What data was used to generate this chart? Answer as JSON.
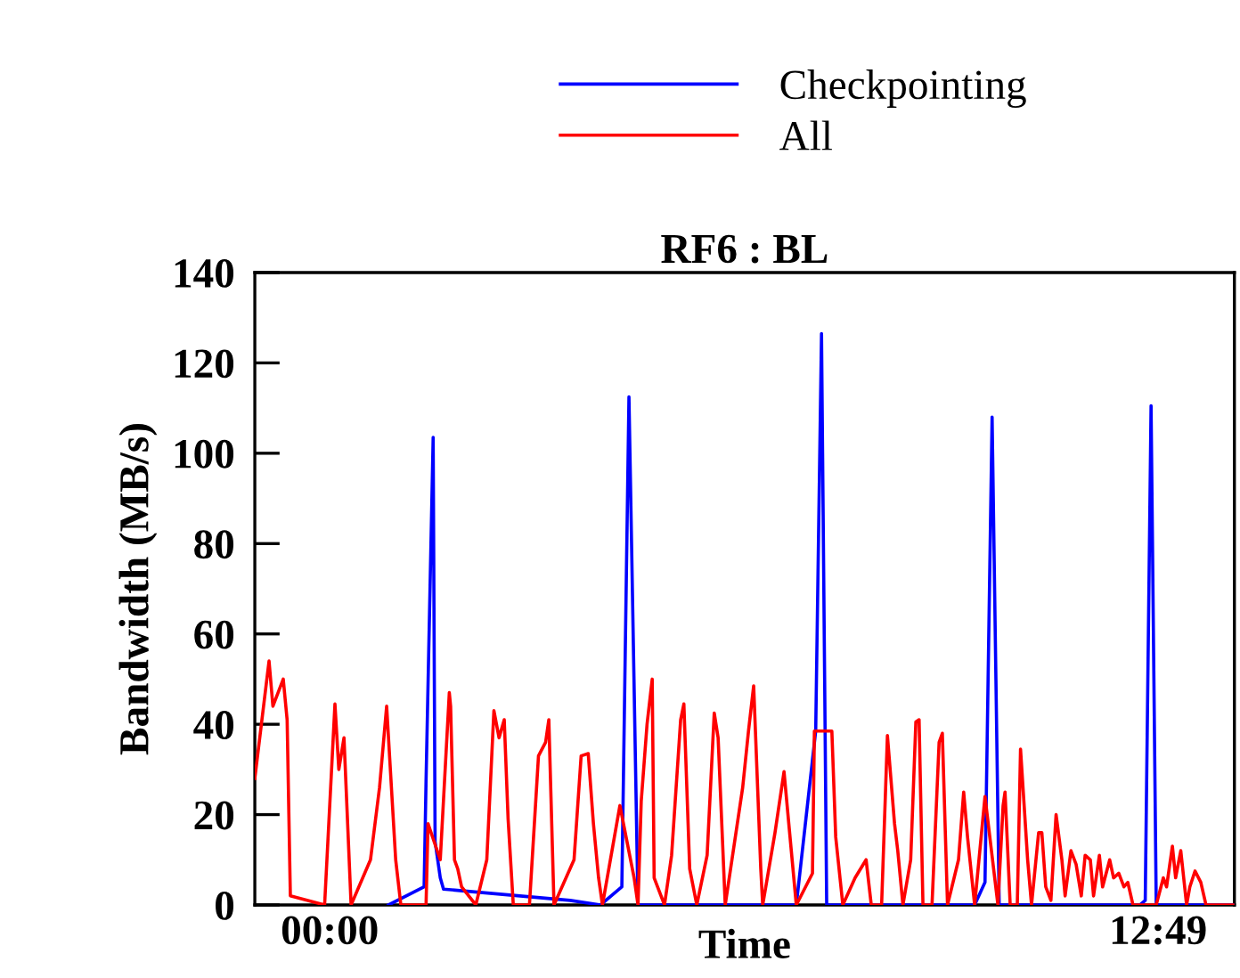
{
  "chart_data": {
    "type": "line",
    "title": "RF6 : BL",
    "xlabel": "Time",
    "ylabel": "Bandwidth (MB/s)",
    "xlim": [
      -1.16,
      14.0
    ],
    "xticks": [
      {
        "value": 0,
        "label": "00:00"
      },
      {
        "value": 12.82,
        "label": "12:49"
      }
    ],
    "ylim": [
      0,
      140
    ],
    "yticks": [
      0,
      20,
      40,
      60,
      80,
      100,
      120,
      140
    ],
    "grid": false,
    "legend": "top",
    "marker": "none",
    "line_style": "solid",
    "series": [
      {
        "name": "Checkpointing",
        "color": "#0000ff",
        "x": [
          0.91,
          1.46,
          1.49,
          1.6,
          1.63,
          1.71,
          1.76,
          3.72,
          4.19,
          4.52,
          4.63,
          4.77,
          7.22,
          7.52,
          7.61,
          7.69,
          9.98,
          10.14,
          10.25,
          10.36,
          12.54,
          12.62,
          12.71,
          12.79,
          14.0
        ],
        "values": [
          0,
          4,
          27.5,
          103.5,
          14,
          6,
          3.5,
          1,
          0,
          4,
          112.5,
          0,
          0,
          38.5,
          126.5,
          0,
          0,
          5,
          108,
          0,
          0,
          1,
          110.5,
          0,
          0
        ]
      },
      {
        "name": "All",
        "color": "#ff0000",
        "x": [
          -1.16,
          -0.94,
          -0.88,
          -0.72,
          -0.66,
          -0.61,
          -0.08,
          0.08,
          0.14,
          0.22,
          0.33,
          0.63,
          0.77,
          0.88,
          1.02,
          1.1,
          1.49,
          1.52,
          1.71,
          1.85,
          1.87,
          1.93,
          1.98,
          2.04,
          2.26,
          2.43,
          2.54,
          2.62,
          2.7,
          2.76,
          2.84,
          3.09,
          3.23,
          3.34,
          3.39,
          3.47,
          3.78,
          3.89,
          4.0,
          4.08,
          4.16,
          4.22,
          4.49,
          4.71,
          4.77,
          4.82,
          4.91,
          4.99,
          5.02,
          5.18,
          5.29,
          5.43,
          5.48,
          5.57,
          5.68,
          5.84,
          5.95,
          6.01,
          6.12,
          6.39,
          6.48,
          6.56,
          6.67,
          6.7,
          6.89,
          7.03,
          7.11,
          7.22,
          7.47,
          7.5,
          7.77,
          7.83,
          7.94,
          8.13,
          8.3,
          8.38,
          8.54,
          8.63,
          8.74,
          8.79,
          8.87,
          8.99,
          9.07,
          9.12,
          9.18,
          9.32,
          9.43,
          9.48,
          9.56,
          9.73,
          9.81,
          9.87,
          9.98,
          10.14,
          10.34,
          10.42,
          10.45,
          10.53,
          10.64,
          10.69,
          10.8,
          10.86,
          10.97,
          11.02,
          11.08,
          11.16,
          11.24,
          11.33,
          11.38,
          11.47,
          11.55,
          11.63,
          11.69,
          11.77,
          11.82,
          11.91,
          11.96,
          12.07,
          12.13,
          12.21,
          12.29,
          12.35,
          12.43,
          12.62,
          12.79,
          12.9,
          12.95,
          13.04,
          13.09,
          13.17,
          13.26,
          13.31,
          13.39,
          13.48,
          13.56,
          14.0
        ],
        "values": [
          28,
          54,
          44,
          50,
          41,
          2,
          0,
          44.5,
          30,
          37,
          0,
          10,
          26,
          44,
          10,
          0,
          0,
          18,
          10,
          47,
          44,
          10,
          8,
          4,
          0,
          10,
          43,
          37,
          41,
          19,
          0,
          0,
          33,
          36,
          41,
          0,
          10,
          33,
          33.5,
          18,
          6,
          0,
          22,
          6,
          0,
          23,
          40,
          50,
          6,
          0,
          11,
          41,
          44.5,
          8,
          0,
          11,
          42.5,
          37,
          0,
          26,
          38.5,
          48.5,
          8,
          0,
          16,
          29.5,
          17,
          0,
          7,
          38.5,
          38.5,
          15,
          0,
          6,
          10,
          0,
          0,
          37.5,
          18,
          12,
          0,
          10,
          40.5,
          41,
          0,
          0,
          36,
          38,
          0,
          10,
          25,
          15,
          0,
          24,
          0,
          22,
          25,
          0,
          0,
          34.5,
          10,
          0,
          16,
          16,
          4,
          1,
          20,
          10,
          2,
          12,
          9,
          2,
          11,
          10,
          2,
          11,
          4,
          10,
          6,
          7,
          4,
          5,
          0,
          0,
          0,
          6,
          4,
          13,
          6,
          12,
          0,
          4,
          7.5,
          5,
          0,
          0
        ]
      }
    ]
  }
}
